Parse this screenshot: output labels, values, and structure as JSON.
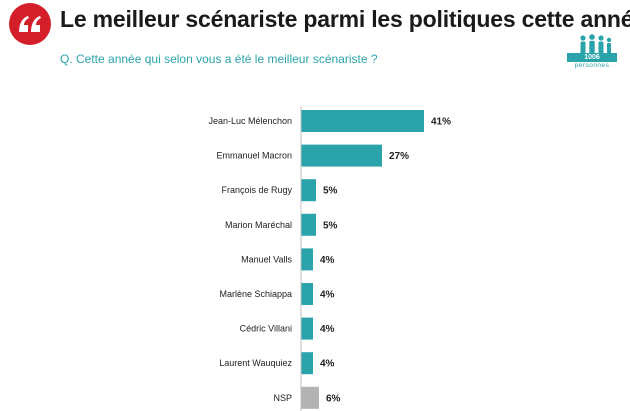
{
  "header": {
    "title": "Le meilleur scénariste parmi les politiques cette année",
    "subtitle": "Q. Cette année qui selon vous a été le meilleur scénariste ?",
    "quote_icon": "quote-icon",
    "sample_badge": {
      "count": "1006",
      "label": "personnes",
      "icon": "people-icon"
    }
  },
  "colors": {
    "accent": "#d41e29",
    "bar": "#2aa3aa",
    "bar_nsp": "#b3b3b3"
  },
  "chart_data": {
    "type": "bar",
    "orientation": "horizontal",
    "categories": [
      "Jean-Luc Mélenchon",
      "Emmanuel Macron",
      "François de Rugy",
      "Marion Maréchal",
      "Manuel Valls",
      "Marlène Schiappa",
      "Cédric Villani",
      "Laurent Wauquiez",
      "NSP"
    ],
    "values": [
      41,
      27,
      5,
      5,
      4,
      4,
      4,
      4,
      6
    ],
    "value_labels": [
      "41%",
      "27%",
      "5%",
      "5%",
      "4%",
      "4%",
      "4%",
      "4%",
      "6%"
    ],
    "unit": "%",
    "grid": false,
    "legend": "none"
  }
}
